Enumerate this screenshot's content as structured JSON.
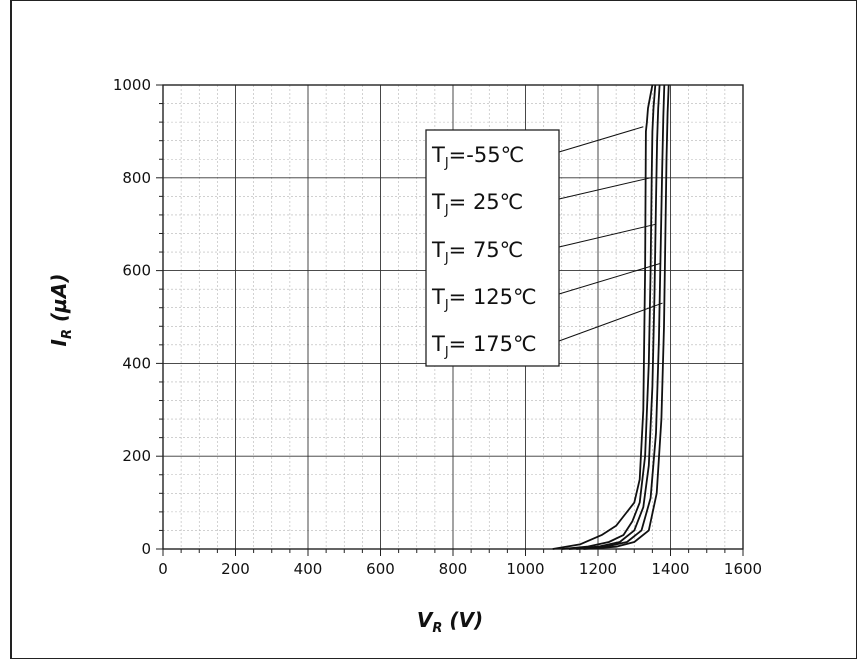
{
  "chart_data": {
    "type": "line",
    "xlabel": {
      "main": "V",
      "sub": "R",
      "unit": " (V)"
    },
    "ylabel": {
      "main": "I",
      "sub": "R",
      "unit": " (µA)"
    },
    "xlim": [
      0,
      1600
    ],
    "ylim": [
      0,
      1000
    ],
    "xticks": [
      "0",
      "200",
      "400",
      "600",
      "800",
      "1000",
      "1200",
      "1400",
      "1600"
    ],
    "yticks": [
      "0",
      "200",
      "400",
      "600",
      "800",
      "1000"
    ],
    "grid": true,
    "legend_placement": "top-center",
    "series": [
      {
        "name": {
          "main": "T",
          "sub": "J",
          "rest": "=-55℃"
        },
        "x": [
          1075,
          1150,
          1210,
          1250,
          1270,
          1300,
          1315,
          1325,
          1330,
          1332,
          1335,
          1338,
          1345,
          1350
        ],
        "y": [
          0,
          10,
          30,
          50,
          70,
          100,
          150,
          300,
          600,
          900,
          920,
          950,
          980,
          1000
        ]
      },
      {
        "name": {
          "main": "T",
          "sub": "J",
          "rest": "= 25℃"
        },
        "x": [
          1100,
          1170,
          1230,
          1270,
          1295,
          1315,
          1330,
          1340,
          1345,
          1348,
          1350,
          1353,
          1358
        ],
        "y": [
          0,
          5,
          15,
          30,
          60,
          100,
          200,
          400,
          600,
          800,
          900,
          950,
          1000
        ]
      },
      {
        "name": {
          "main": "T",
          "sub": "J",
          "rest": "= 75℃"
        },
        "x": [
          1120,
          1200,
          1260,
          1300,
          1325,
          1340,
          1350,
          1356,
          1360,
          1363,
          1366,
          1370
        ],
        "y": [
          0,
          5,
          15,
          40,
          90,
          180,
          350,
          550,
          750,
          880,
          950,
          1000
        ]
      },
      {
        "name": {
          "main": "T",
          "sub": "J",
          "rest": "= 125℃"
        },
        "x": [
          1140,
          1220,
          1280,
          1320,
          1345,
          1360,
          1368,
          1373,
          1377,
          1380,
          1383
        ],
        "y": [
          0,
          5,
          15,
          40,
          110,
          250,
          450,
          650,
          820,
          930,
          1000
        ]
      },
      {
        "name": {
          "main": "T",
          "sub": "J",
          "rest": "= 175℃"
        },
        "x": [
          1160,
          1250,
          1300,
          1340,
          1362,
          1375,
          1382,
          1386,
          1389,
          1392,
          1395
        ],
        "y": [
          0,
          5,
          15,
          40,
          120,
          280,
          480,
          680,
          840,
          940,
          1000
        ]
      }
    ],
    "legend_targets": [
      {
        "x": 1325,
        "y": 910
      },
      {
        "x": 1345,
        "y": 800
      },
      {
        "x": 1360,
        "y": 700
      },
      {
        "x": 1370,
        "y": 615
      },
      {
        "x": 1378,
        "y": 530
      }
    ]
  }
}
